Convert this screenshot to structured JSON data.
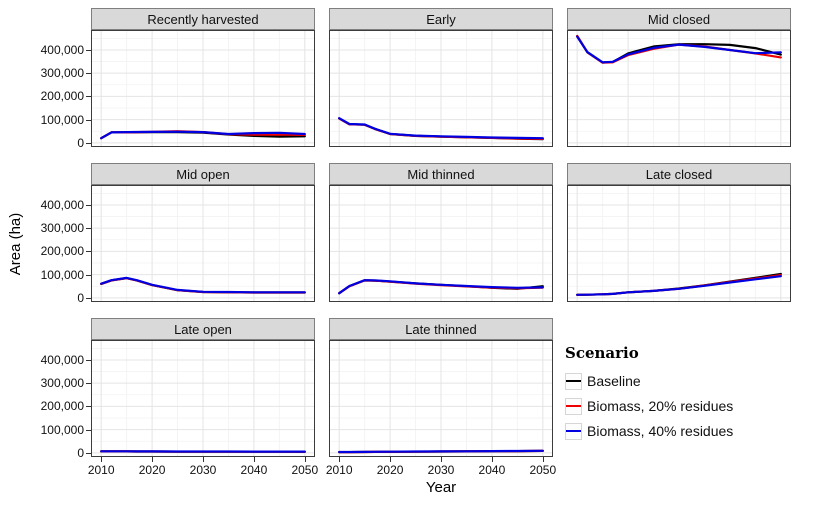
{
  "figure": {
    "y_axis_title": "Area (ha)",
    "x_axis_title": "Year",
    "y_tick_labels": [
      "400,000",
      "300,000",
      "200,000",
      "100,000",
      "0"
    ],
    "y_tick_values": [
      400000,
      300000,
      200000,
      100000,
      0
    ],
    "x_tick_labels": [
      "2010",
      "2020",
      "2030",
      "2040",
      "2050"
    ],
    "x_tick_values": [
      2010,
      2020,
      2030,
      2040,
      2050
    ]
  },
  "legend": {
    "title": "Scenario",
    "items": [
      {
        "label": "Baseline",
        "color": "#000000"
      },
      {
        "label": "Biomass, 20% residues",
        "color": "#ee0000"
      },
      {
        "label": "Biomass, 40% residues",
        "color": "#0000e0"
      }
    ]
  },
  "style": {
    "strip_bg": "#d9d9d9",
    "strip_border": "#7f7f7f",
    "panel_border": "#3c3c3c",
    "grid_major": "#e4e4e4",
    "grid_minor": "#f2f2f2"
  },
  "chart_data": {
    "type": "line",
    "title": "",
    "xlabel": "Year",
    "ylabel": "Area (ha)",
    "xlim": [
      2008,
      2052
    ],
    "ylim": [
      -18000,
      486000
    ],
    "x_major_gridlines": [
      2010,
      2020,
      2030,
      2040,
      2050
    ],
    "x_minor_gridlines": [
      2015,
      2025,
      2035,
      2045
    ],
    "y_major_gridlines": [
      0,
      100000,
      200000,
      300000,
      400000
    ],
    "y_minor_gridlines": [
      50000,
      150000,
      250000,
      350000,
      450000
    ],
    "legend_position": "empty facet cell (bottom right)",
    "x": [
      2010,
      2012,
      2015,
      2017,
      2020,
      2025,
      2030,
      2035,
      2040,
      2045,
      2050
    ],
    "panels": [
      {
        "title": "Recently harvested",
        "series": [
          {
            "name": "Baseline",
            "values": [
              20000,
              45000,
              45000,
              45500,
              46000,
              46000,
              44000,
              36000,
              30000,
              27000,
              28000
            ]
          },
          {
            "name": "Biomass, 20% residues",
            "values": [
              20000,
              45000,
              45000,
              46000,
              47000,
              50000,
              46000,
              37000,
              35000,
              36000,
              34000
            ]
          },
          {
            "name": "Biomass, 40% residues",
            "values": [
              20000,
              45000,
              46000,
              46500,
              47000,
              48000,
              46000,
              38000,
              42000,
              43000,
              38000
            ]
          }
        ]
      },
      {
        "title": "Early",
        "series": [
          {
            "name": "Baseline",
            "values": [
              105000,
              80000,
              78000,
              60000,
              38000,
              30000,
              27000,
              24000,
              21000,
              18000,
              16000
            ]
          },
          {
            "name": "Biomass, 20% residues",
            "values": [
              105000,
              80000,
              78000,
              60000,
              38000,
              30000,
              27000,
              24000,
              21000,
              18500,
              17000
            ]
          },
          {
            "name": "Biomass, 40% residues",
            "values": [
              106000,
              81000,
              79000,
              61000,
              39000,
              31000,
              28000,
              25500,
              23000,
              21000,
              20000
            ]
          }
        ]
      },
      {
        "title": "Mid closed",
        "series": [
          {
            "name": "Baseline",
            "values": [
              460000,
              390000,
              346000,
              348000,
              385000,
              415000,
              425000,
              425000,
              422000,
              408000,
              380000
            ]
          },
          {
            "name": "Biomass, 20% residues",
            "values": [
              460000,
              390000,
              345000,
              347000,
              378000,
              405000,
              423000,
              415000,
              400000,
              385000,
              368000
            ]
          },
          {
            "name": "Biomass, 40% residues",
            "values": [
              457000,
              391000,
              347000,
              349000,
              381000,
              409000,
              423000,
              413000,
              400000,
              386000,
              390000
            ]
          }
        ]
      },
      {
        "title": "Mid open",
        "series": [
          {
            "name": "Baseline",
            "values": [
              60000,
              75000,
              85000,
              75000,
              55000,
              33000,
              25000,
              24000,
              23000,
              23000,
              23000
            ]
          },
          {
            "name": "Biomass, 20% residues",
            "values": [
              60000,
              75000,
              85000,
              75000,
              55000,
              33000,
              25000,
              24000,
              23000,
              23000,
              23000
            ]
          },
          {
            "name": "Biomass, 40% residues",
            "values": [
              61000,
              76000,
              86000,
              76000,
              56000,
              34000,
              26000,
              25000,
              24000,
              24000,
              24000
            ]
          }
        ]
      },
      {
        "title": "Mid thinned",
        "series": [
          {
            "name": "Baseline",
            "values": [
              20000,
              50000,
              75000,
              74000,
              70000,
              62000,
              56000,
              50000,
              43000,
              39000,
              50000
            ]
          },
          {
            "name": "Biomass, 20% residues",
            "values": [
              20000,
              50000,
              75000,
              74000,
              70000,
              61000,
              55000,
              49000,
              44000,
              41000,
              44000
            ]
          },
          {
            "name": "Biomass, 40% residues",
            "values": [
              20000,
              51000,
              76000,
              75000,
              71000,
              62000,
              56000,
              51000,
              46000,
              43000,
              45000
            ]
          }
        ]
      },
      {
        "title": "Late closed",
        "series": [
          {
            "name": "Baseline",
            "values": [
              13000,
              13500,
              15000,
              17000,
              24000,
              30000,
              40000,
              54000,
              70000,
              86000,
              103000
            ]
          },
          {
            "name": "Biomass, 20% residues",
            "values": [
              13000,
              13500,
              15000,
              17000,
              24000,
              30000,
              39000,
              53000,
              68000,
              83000,
              98000
            ]
          },
          {
            "name": "Biomass, 40% residues",
            "values": [
              13000,
              13500,
              15000,
              17000,
              24000,
              30000,
              39000,
              52000,
              66000,
              80000,
              93000
            ]
          }
        ]
      },
      {
        "title": "Late open",
        "series": [
          {
            "name": "Baseline",
            "values": [
              6000,
              6000,
              6000,
              5800,
              5500,
              5200,
              5000,
              5000,
              4800,
              4700,
              4600
            ]
          },
          {
            "name": "Biomass, 20% residues",
            "values": [
              6000,
              6000,
              6000,
              5800,
              5500,
              5200,
              5000,
              5000,
              4800,
              4700,
              4600
            ]
          },
          {
            "name": "Biomass, 40% residues",
            "values": [
              6500,
              6500,
              6400,
              6200,
              6000,
              5800,
              5600,
              5500,
              5400,
              5300,
              5300
            ]
          }
        ]
      },
      {
        "title": "Late thinned",
        "series": [
          {
            "name": "Baseline",
            "values": [
              3000,
              3200,
              3600,
              3900,
              4300,
              5000,
              5600,
              6200,
              6800,
              7400,
              8200
            ]
          },
          {
            "name": "Biomass, 20% residues",
            "values": [
              3000,
              3200,
              3600,
              3900,
              4300,
              5000,
              5600,
              6200,
              6800,
              7400,
              8200
            ]
          },
          {
            "name": "Biomass, 40% residues",
            "values": [
              3500,
              3700,
              4100,
              4400,
              4800,
              5500,
              6100,
              6700,
              7300,
              7900,
              8700
            ]
          }
        ]
      }
    ]
  }
}
